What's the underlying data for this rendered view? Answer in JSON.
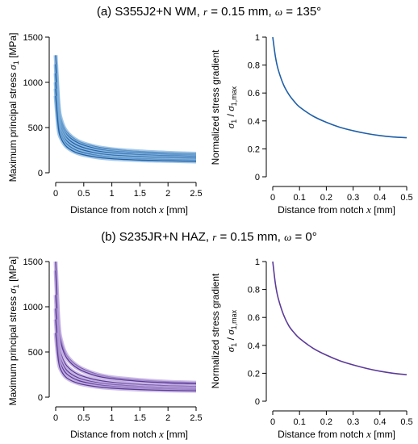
{
  "colors": {
    "panel_a": "#1f5fa8",
    "panel_a_band": "#7fb0db",
    "panel_b": "#5b3a99",
    "panel_b_band": "#b9a3dc"
  },
  "chart_data": [
    {
      "id": "a_left",
      "type": "line",
      "title": "(a) S355J2+N WM, r = 0.15 mm, ω = 135°",
      "title_parts": {
        "prefix": "(a) S355J2+N WM,",
        "r_sym": "r",
        "r_val": "= 0.15 mm,",
        "w_sym": "ω",
        "w_val": "= 135°"
      },
      "xlabel": "Distance from notch",
      "xlabel_sym": "x",
      "xlabel_unit": "[mm]",
      "ylabel": "Maximum principal stress",
      "ylabel_sym": "σ",
      "ylabel_sub": "1",
      "ylabel_unit": "[MPa]",
      "xlim": [
        0,
        2.5
      ],
      "ylim": [
        0,
        1500
      ],
      "xticks": [
        "0",
        "0.5",
        "1",
        "1.5",
        "2",
        "2.5"
      ],
      "yticks": [
        "0",
        "500",
        "1000",
        "1500"
      ],
      "series": [
        {
          "values": [
            [
              0,
              1300
            ],
            [
              0.05,
              760
            ],
            [
              0.1,
              580
            ],
            [
              0.2,
              450
            ],
            [
              0.4,
              350
            ],
            [
              0.7,
              290
            ],
            [
              1.0,
              260
            ],
            [
              1.5,
              235
            ],
            [
              2.0,
              220
            ],
            [
              2.5,
              210
            ]
          ]
        },
        {
          "values": [
            [
              0,
              1200
            ],
            [
              0.05,
              710
            ],
            [
              0.1,
              545
            ],
            [
              0.2,
              420
            ],
            [
              0.4,
              330
            ],
            [
              0.7,
              270
            ],
            [
              1.0,
              240
            ],
            [
              1.5,
              220
            ],
            [
              2.0,
              205
            ],
            [
              2.5,
              195
            ]
          ]
        },
        {
          "values": [
            [
              0,
              1100
            ],
            [
              0.05,
              650
            ],
            [
              0.1,
              500
            ],
            [
              0.2,
              385
            ],
            [
              0.4,
              300
            ],
            [
              0.7,
              245
            ],
            [
              1.0,
              220
            ],
            [
              1.5,
              200
            ],
            [
              2.0,
              188
            ],
            [
              2.5,
              180
            ]
          ]
        },
        {
          "values": [
            [
              0,
              1000
            ],
            [
              0.05,
              590
            ],
            [
              0.1,
              455
            ],
            [
              0.2,
              350
            ],
            [
              0.4,
              270
            ],
            [
              0.7,
              220
            ],
            [
              1.0,
              195
            ],
            [
              1.5,
              178
            ],
            [
              2.0,
              168
            ],
            [
              2.5,
              160
            ]
          ]
        },
        {
          "values": [
            [
              0,
              930
            ],
            [
              0.05,
              540
            ],
            [
              0.1,
              415
            ],
            [
              0.2,
              315
            ],
            [
              0.4,
              240
            ],
            [
              0.7,
              195
            ],
            [
              1.0,
              172
            ],
            [
              1.5,
              156
            ],
            [
              2.0,
              147
            ],
            [
              2.5,
              140
            ]
          ]
        },
        {
          "values": [
            [
              0,
              850
            ],
            [
              0.05,
              490
            ],
            [
              0.1,
              375
            ],
            [
              0.2,
              285
            ],
            [
              0.4,
              215
            ],
            [
              0.7,
              175
            ],
            [
              1.0,
              155
            ],
            [
              1.5,
              140
            ],
            [
              2.0,
              132
            ],
            [
              2.5,
              125
            ]
          ]
        }
      ]
    },
    {
      "id": "a_right",
      "type": "line",
      "xlabel": "Distance from notch",
      "xlabel_sym": "x",
      "xlabel_unit": "[mm]",
      "ylabel": "Normalized stress gradient",
      "ylabel2_sym": "σ",
      "ylabel2_sub": "1",
      "ylabel2_mid": " / ",
      "ylabel2_sym2": "σ",
      "ylabel2_sub2": "1,max",
      "xlim": [
        0,
        0.5
      ],
      "ylim": [
        0,
        1
      ],
      "xticks": [
        "0",
        "0.1",
        "0.2",
        "0.3",
        "0.4",
        "0.5"
      ],
      "yticks": [
        "0",
        "0.2",
        "0.4",
        "0.6",
        "0.8",
        "1"
      ],
      "series": [
        {
          "values": [
            [
              0,
              1.0
            ],
            [
              0.01,
              0.86
            ],
            [
              0.02,
              0.77
            ],
            [
              0.04,
              0.66
            ],
            [
              0.06,
              0.59
            ],
            [
              0.08,
              0.54
            ],
            [
              0.1,
              0.5
            ],
            [
              0.15,
              0.435
            ],
            [
              0.2,
              0.39
            ],
            [
              0.25,
              0.355
            ],
            [
              0.3,
              0.33
            ],
            [
              0.35,
              0.31
            ],
            [
              0.4,
              0.295
            ],
            [
              0.45,
              0.285
            ],
            [
              0.5,
              0.28
            ]
          ]
        }
      ]
    },
    {
      "id": "b_left",
      "type": "line",
      "title": "(b) S235JR+N HAZ, r = 0.15 mm, ω = 0°",
      "title_parts": {
        "prefix": "(b) S235JR+N HAZ,",
        "r_sym": "r",
        "r_val": "= 0.15 mm,",
        "w_sym": "ω",
        "w_val": "= 0°"
      },
      "xlabel": "Distance from notch",
      "xlabel_sym": "x",
      "xlabel_unit": "[mm]",
      "ylabel": "Maximum principal stress",
      "ylabel_sym": "σ",
      "ylabel_sub": "1",
      "ylabel_unit": "[MPa]",
      "xlim": [
        0,
        2.5
      ],
      "ylim": [
        0,
        1500
      ],
      "xticks": [
        "0",
        "0.5",
        "1",
        "1.5",
        "2",
        "2.5"
      ],
      "yticks": [
        "0",
        "500",
        "1000",
        "1500"
      ],
      "series": [
        {
          "values": [
            [
              0,
              1500
            ],
            [
              0.05,
              840
            ],
            [
              0.1,
              620
            ],
            [
              0.2,
              460
            ],
            [
              0.4,
              340
            ],
            [
              0.7,
              260
            ],
            [
              1.0,
              220
            ],
            [
              1.5,
              190
            ],
            [
              2.0,
              170
            ],
            [
              2.5,
              160
            ]
          ]
        },
        {
          "values": [
            [
              0,
              1400
            ],
            [
              0.05,
              790
            ],
            [
              0.1,
              585
            ],
            [
              0.2,
              430
            ],
            [
              0.4,
              315
            ],
            [
              0.7,
              240
            ],
            [
              1.0,
              205
            ],
            [
              1.5,
              175
            ],
            [
              2.0,
              158
            ],
            [
              2.5,
              148
            ]
          ]
        },
        {
          "values": [
            [
              0,
              1130
            ],
            [
              0.05,
              640
            ],
            [
              0.1,
              470
            ],
            [
              0.2,
              345
            ],
            [
              0.4,
              252
            ],
            [
              0.7,
              195
            ],
            [
              1.0,
              165
            ],
            [
              1.5,
              140
            ],
            [
              2.0,
              126
            ],
            [
              2.5,
              118
            ]
          ]
        },
        {
          "values": [
            [
              0,
              980
            ],
            [
              0.05,
              550
            ],
            [
              0.1,
              405
            ],
            [
              0.2,
              295
            ],
            [
              0.4,
              215
            ],
            [
              0.7,
              165
            ],
            [
              1.0,
              140
            ],
            [
              1.5,
              118
            ],
            [
              2.0,
              106
            ],
            [
              2.5,
              99
            ]
          ]
        },
        {
          "values": [
            [
              0,
              860
            ],
            [
              0.05,
              480
            ],
            [
              0.1,
              350
            ],
            [
              0.2,
              255
            ],
            [
              0.4,
              185
            ],
            [
              0.7,
              142
            ],
            [
              1.0,
              120
            ],
            [
              1.5,
              101
            ],
            [
              2.0,
              91
            ],
            [
              2.5,
              85
            ]
          ]
        },
        {
          "values": [
            [
              0,
              710
            ],
            [
              0.05,
              400
            ],
            [
              0.1,
              292
            ],
            [
              0.2,
              212
            ],
            [
              0.4,
              154
            ],
            [
              0.7,
              118
            ],
            [
              1.0,
              100
            ],
            [
              1.5,
              84
            ],
            [
              2.0,
              75
            ],
            [
              2.5,
              70
            ]
          ]
        }
      ]
    },
    {
      "id": "b_right",
      "type": "line",
      "xlabel": "Distance from notch",
      "xlabel_sym": "x",
      "xlabel_unit": "[mm]",
      "ylabel": "Normalized stress gradient",
      "ylabel2_sym": "σ",
      "ylabel2_sub": "1",
      "ylabel2_mid": " / ",
      "ylabel2_sym2": "σ",
      "ylabel2_sub2": "1,max",
      "xlim": [
        0,
        0.5
      ],
      "ylim": [
        0,
        1
      ],
      "xticks": [
        "0",
        "0.1",
        "0.2",
        "0.3",
        "0.4",
        "0.5"
      ],
      "yticks": [
        "0",
        "0.2",
        "0.4",
        "0.6",
        "0.8",
        "1"
      ],
      "series": [
        {
          "values": [
            [
              0,
              1.0
            ],
            [
              0.01,
              0.84
            ],
            [
              0.02,
              0.74
            ],
            [
              0.04,
              0.62
            ],
            [
              0.06,
              0.54
            ],
            [
              0.08,
              0.49
            ],
            [
              0.1,
              0.45
            ],
            [
              0.15,
              0.38
            ],
            [
              0.2,
              0.33
            ],
            [
              0.25,
              0.29
            ],
            [
              0.3,
              0.26
            ],
            [
              0.35,
              0.235
            ],
            [
              0.4,
              0.215
            ],
            [
              0.45,
              0.2
            ],
            [
              0.5,
              0.19
            ]
          ]
        }
      ]
    }
  ]
}
